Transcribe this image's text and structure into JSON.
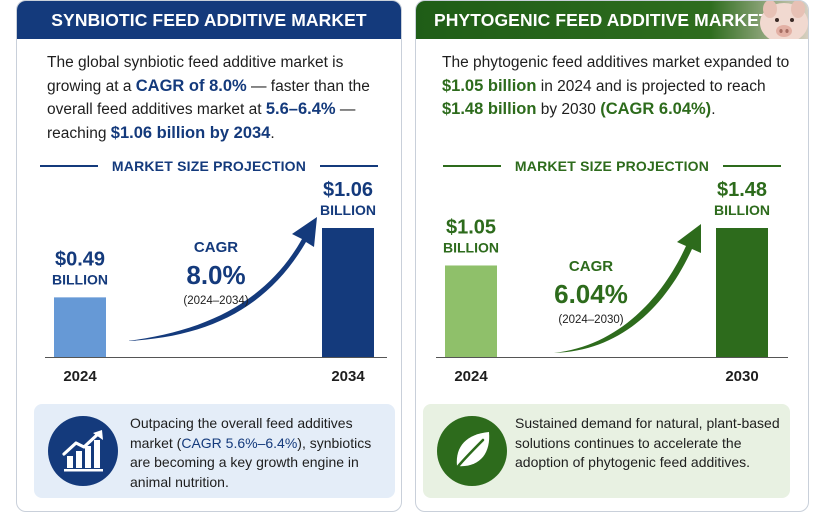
{
  "panels": {
    "left": {
      "title": "SYNBIOTIC FEED ADDITIVE MARKET",
      "intro": {
        "t1": "The global synbiotic feed additive market is growing at a ",
        "cagr": "CAGR of 8.0%",
        "t2": " — faster than the overall feed additives market at ",
        "range": "5.6–6.4%",
        "t3": " — reaching ",
        "target": "$1.06 billion by 2034",
        "t4": "."
      },
      "section_title": "MARKET SIZE PROJECTION",
      "callout": {
        "icon": "growth-chart-icon",
        "t1": "Outpacing the overall feed additives market (",
        "highlight": "CAGR 5.6%–6.4%",
        "t2": "), synbiotics are becoming a key growth engine in animal nutrition."
      },
      "colors": {
        "accent": "#143a7c",
        "bar_start": "#6699d6",
        "bar_end": "#143a7c"
      }
    },
    "right": {
      "title": "PHYTOGENIC FEED ADDITIVE MARKET",
      "intro": {
        "t1": "The phytogenic feed additives market expanded to ",
        "start": "$1.05 billion",
        "t2": " in 2024 and is projected to reach ",
        "target": "$1.48 billion",
        "t3": " by 2030 ",
        "cagr": "(CAGR 6.04%)",
        "t4": "."
      },
      "section_title": "MARKET SIZE PROJECTION",
      "callout": {
        "icon": "leaf-icon",
        "text": "Sustained demand for natural, plant-based solutions continues to accelerate the adoption of phytogenic feed additives."
      },
      "colors": {
        "accent": "#2d6b1c",
        "bar_start": "#8fc06a",
        "bar_end": "#2d6b1c"
      }
    }
  },
  "chart_data": [
    {
      "type": "bar",
      "categories": [
        "2024",
        "2034"
      ],
      "values": [
        0.49,
        1.06
      ],
      "value_labels": [
        "$0.49",
        "$1.06"
      ],
      "unit_label": "BILLION",
      "annotation": {
        "label": "CAGR",
        "value": "8.0%",
        "period": "(2024–2034)"
      }
    },
    {
      "type": "bar",
      "categories": [
        "2024",
        "2030"
      ],
      "values": [
        1.05,
        1.48
      ],
      "value_labels": [
        "$1.05",
        "$1.48"
      ],
      "unit_label": "BILLION",
      "annotation": {
        "label": "CAGR",
        "value": "6.04%",
        "period": "(2024–2030)"
      }
    }
  ]
}
